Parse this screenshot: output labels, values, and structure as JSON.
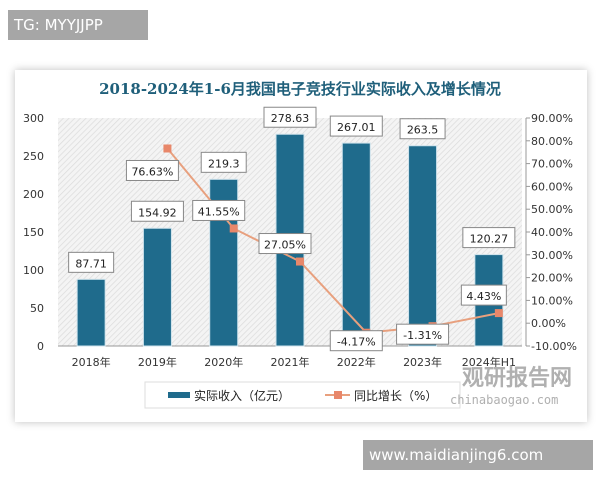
{
  "tag": "TG: MYYJJPP",
  "footer": "www.maidianjing6.com",
  "watermark": {
    "name": "观研报告网",
    "url": "chinabaogao.com"
  },
  "chart_data": {
    "type": "bar",
    "title": "2018-2024年1-6月我国电子竞技行业实际收入及增长情况",
    "categories": [
      "2018年",
      "2019年",
      "2020年",
      "2021年",
      "2022年",
      "2023年",
      "2024年H1"
    ],
    "series": [
      {
        "name": "实际收入（亿元）",
        "type": "bar",
        "axis": "left",
        "color": "#1f6b8c",
        "values": [
          87.71,
          154.92,
          219.3,
          278.63,
          267.01,
          263.5,
          120.27
        ],
        "labels": [
          "87.71",
          "154.92",
          "219.3",
          "278.63",
          "267.01",
          "263.5",
          "120.27"
        ]
      },
      {
        "name": "同比增长（%）",
        "type": "line",
        "axis": "right",
        "color": "#e8a07e",
        "values": [
          null,
          76.63,
          41.55,
          27.05,
          -4.17,
          -1.31,
          4.43
        ],
        "labels": [
          "",
          "76.63%",
          "41.55%",
          "27.05%",
          "-4.17%",
          "-1.31%",
          "4.43%"
        ]
      }
    ],
    "ylim": [
      0,
      300
    ],
    "yticks": [
      "0",
      "50",
      "100",
      "150",
      "200",
      "250",
      "300"
    ],
    "y2lim": [
      -10,
      90
    ],
    "y2ticks": [
      "-10.00%",
      "0.00%",
      "10.00%",
      "20.00%",
      "30.00%",
      "40.00%",
      "50.00%",
      "60.00%",
      "70.00%",
      "80.00%",
      "90.00%"
    ],
    "legend": "bottom",
    "grid": false
  }
}
